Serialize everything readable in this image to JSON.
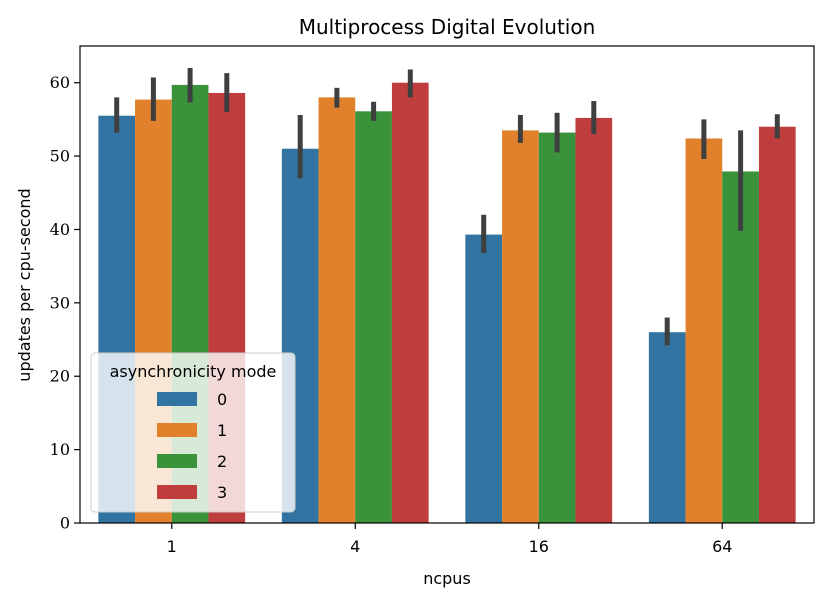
{
  "chart_data": {
    "type": "bar",
    "title": "Multiprocess Digital Evolution",
    "xlabel": "ncpus",
    "ylabel": "updates per cpu-second",
    "categories": [
      "1",
      "4",
      "16",
      "64"
    ],
    "ylim": [
      0,
      65
    ],
    "yticks": [
      0,
      10,
      20,
      30,
      40,
      50,
      60
    ],
    "grid": false,
    "legend": {
      "title": "asynchronicity mode",
      "position": "lower-left"
    },
    "series": [
      {
        "name": "0",
        "color": "#3274a1",
        "values": [
          55.5,
          51.0,
          39.3,
          26.0
        ],
        "error_low": [
          53.2,
          47.0,
          36.8,
          24.2
        ],
        "error_high": [
          58.0,
          55.6,
          42.0,
          28.0
        ]
      },
      {
        "name": "1",
        "color": "#e1812c",
        "values": [
          57.7,
          58.0,
          53.5,
          52.4
        ],
        "error_low": [
          54.8,
          56.6,
          51.8,
          49.6
        ],
        "error_high": [
          60.7,
          59.3,
          55.6,
          55.0
        ]
      },
      {
        "name": "2",
        "color": "#3a923a",
        "values": [
          59.7,
          56.1,
          53.2,
          47.9
        ],
        "error_low": [
          57.3,
          54.8,
          50.5,
          39.8
        ],
        "error_high": [
          62.0,
          57.4,
          55.9,
          53.5
        ]
      },
      {
        "name": "3",
        "color": "#c03d3e",
        "values": [
          58.6,
          60.0,
          55.2,
          54.0
        ],
        "error_low": [
          56.0,
          58.0,
          53.0,
          52.4
        ],
        "error_high": [
          61.3,
          61.8,
          57.5,
          55.7
        ]
      }
    ]
  }
}
